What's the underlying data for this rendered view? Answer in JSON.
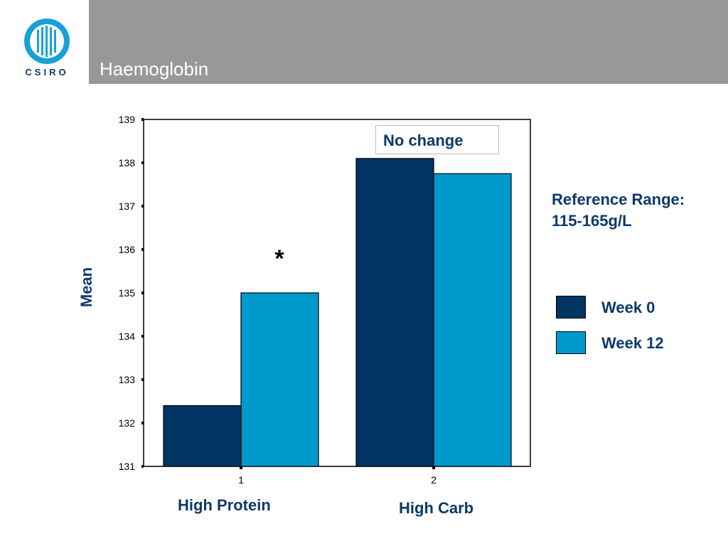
{
  "logo": {
    "text": "CSIRO",
    "icon": "csiro-globe-logo"
  },
  "header": {
    "title": "Haemoglobin"
  },
  "colors": {
    "week0": "#003563",
    "week12": "#0099cc",
    "header_bar": "#989898",
    "text": "#0d3a6b"
  },
  "reference_range": {
    "line1": "Reference Range:",
    "line2": "115-165g/L"
  },
  "annotations": {
    "no_change": "No change",
    "significance": "*"
  },
  "group_labels": [
    "High Protein",
    "High Carb"
  ],
  "chart_data": {
    "type": "bar",
    "categories": [
      "1",
      "2"
    ],
    "series": [
      {
        "name": "Week 0",
        "values": [
          132.4,
          138.1
        ]
      },
      {
        "name": "Week 12",
        "values": [
          135.0,
          137.75
        ]
      }
    ],
    "ylabel": "Mean",
    "ylim": [
      131,
      139
    ],
    "yticks": [
      131,
      132,
      133,
      134,
      135,
      136,
      137,
      138,
      139
    ],
    "legend": "right"
  }
}
